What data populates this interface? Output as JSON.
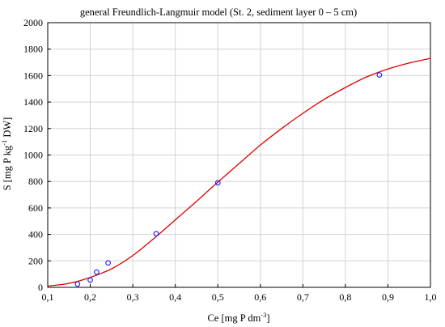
{
  "chart_data": {
    "type": "scatter",
    "title": "general Freundlich-Langmuir model (St. 2, sediment layer 0 – 5 cm)",
    "xlabel": {
      "base": "Ce [mg P dm",
      "sup": "-3",
      "tail": "]"
    },
    "ylabel": {
      "base": "S [mg P kg",
      "sup": "-1",
      "tail": " DW]"
    },
    "xlim": [
      0.1,
      1.0
    ],
    "ylim": [
      0,
      2000
    ],
    "xticks": [
      0.1,
      0.2,
      0.3,
      0.4,
      0.5,
      0.6,
      0.7,
      0.8,
      0.9,
      1.0
    ],
    "xtick_labels": [
      "0,1",
      "0,2",
      "0,3",
      "0,4",
      "0,5",
      "0,6",
      "0,7",
      "0,8",
      "0,9",
      "1,0"
    ],
    "yticks": [
      0,
      200,
      400,
      600,
      800,
      1000,
      1200,
      1400,
      1600,
      1800,
      2000
    ],
    "ytick_labels": [
      "0",
      "200",
      "400",
      "600",
      "800",
      "1000",
      "1200",
      "1400",
      "1600",
      "1800",
      "2000"
    ],
    "grid": true,
    "points": {
      "x": [
        0.17,
        0.2,
        0.215,
        0.242,
        0.355,
        0.5,
        0.88
      ],
      "y": [
        25,
        55,
        115,
        185,
        405,
        790,
        1605
      ],
      "color": "#1a1aff"
    },
    "fit_curve": {
      "color": "#e00000",
      "x": [
        0.1,
        0.15,
        0.2,
        0.25,
        0.3,
        0.35,
        0.4,
        0.45,
        0.5,
        0.55,
        0.6,
        0.65,
        0.7,
        0.75,
        0.8,
        0.85,
        0.9,
        0.95,
        1.0
      ],
      "y": [
        10,
        30,
        75,
        140,
        240,
        370,
        510,
        650,
        795,
        935,
        1075,
        1200,
        1315,
        1420,
        1510,
        1590,
        1650,
        1695,
        1730
      ]
    }
  }
}
